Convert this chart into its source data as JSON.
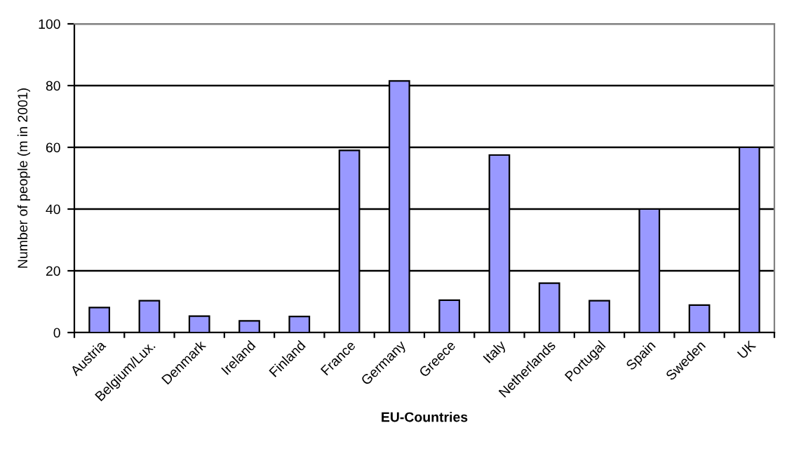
{
  "chart_data": {
    "type": "bar",
    "xlabel": "EU-Countries",
    "ylabel": "Number of people (m in 2001)",
    "categories": [
      "Austria",
      "Belgium/Lux.",
      "Denmark",
      "Ireland",
      "Finland",
      "France",
      "Germany",
      "Greece",
      "Italy",
      "Netherlands",
      "Portugal",
      "Spain",
      "Sweden",
      "UK"
    ],
    "values": [
      8.1,
      10.3,
      5.3,
      3.8,
      5.2,
      59,
      81.5,
      10.5,
      57.5,
      16,
      10.3,
      40,
      8.9,
      60
    ],
    "color": "#9999ff",
    "ylim": [
      0,
      100
    ],
    "yticks": [
      0,
      20,
      40,
      60,
      80,
      100
    ],
    "grid": "y"
  }
}
